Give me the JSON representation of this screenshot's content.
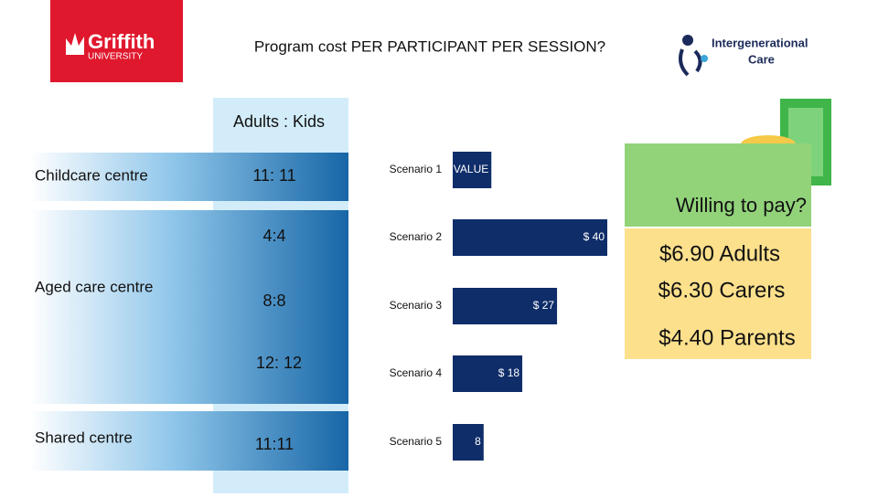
{
  "header": {
    "title": "Program cost PER PARTICIPANT PER SESSION?",
    "logo_left": [
      "Griffith",
      "UNIVERSITY"
    ],
    "logo_right": [
      "Intergenerational",
      "Care"
    ]
  },
  "table": {
    "header": "Adults : Kids",
    "groups": [
      {
        "label": "Childcare centre",
        "ratios": [
          "11: 11"
        ]
      },
      {
        "label": "Aged care centre",
        "ratios": [
          "4:4",
          "8:8",
          "12: 12"
        ]
      },
      {
        "label": "Shared centre",
        "ratios": [
          "11:11"
        ]
      }
    ]
  },
  "chart_data": {
    "type": "bar",
    "orientation": "horizontal",
    "categories": [
      "Scenario 1",
      "Scenario 2",
      "Scenario 3",
      "Scenario 4",
      "Scenario 5"
    ],
    "values": [
      10,
      40,
      27,
      18,
      8
    ],
    "value_labels": [
      "VALUE",
      "$ 40",
      "$ 27",
      "$ 18",
      "8"
    ],
    "color": "#0f2d69"
  },
  "willing": {
    "title": "Willing to pay?",
    "items": [
      "$6.90 Adults",
      "$6.30 Carers",
      "$4.40 Parents"
    ]
  }
}
